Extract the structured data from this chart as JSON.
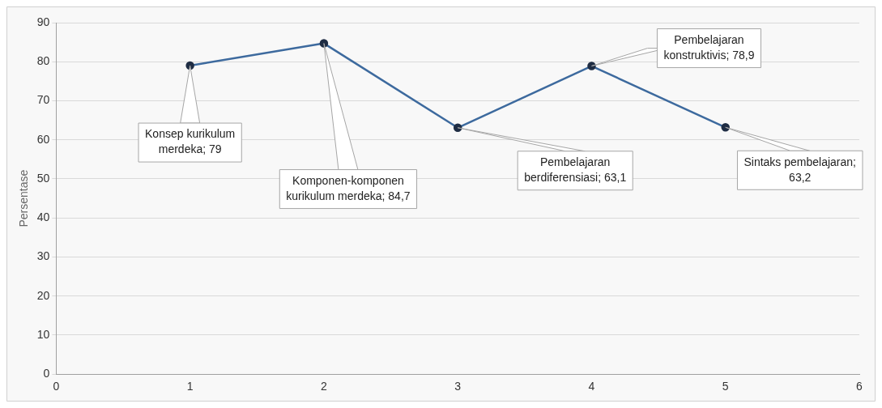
{
  "chart_data": {
    "type": "line",
    "ylabel": "Persentase",
    "x": [
      1,
      2,
      3,
      4,
      5
    ],
    "series": [
      {
        "color": "#3d6a9e",
        "values": [
          79,
          84.7,
          63.1,
          78.9,
          63.2
        ]
      }
    ],
    "xlim": [
      0,
      6
    ],
    "xticks": [
      0,
      1,
      2,
      3,
      4,
      5,
      6
    ],
    "ylim": [
      0,
      90
    ],
    "yticks": [
      0,
      10,
      20,
      30,
      40,
      50,
      60,
      70,
      80,
      90
    ],
    "grid": "y",
    "marker": "circle",
    "line_style": "solid",
    "legend": false,
    "annotations": [
      {
        "text": "Konsep kurikulum merdeka; 79",
        "x": 1,
        "y": 79
      },
      {
        "text": "Komponen-komponen kurikulum merdeka; 84,7",
        "x": 2,
        "y": 84.7
      },
      {
        "text": "Pembelajaran berdiferensiasi; 63,1",
        "x": 3,
        "y": 63.1
      },
      {
        "text": "Pembelajaran konstruktivis; 78,9",
        "x": 4,
        "y": 78.9
      },
      {
        "text": "Sintaks pembelajaran; 63,2",
        "x": 5,
        "y": 63.2
      }
    ]
  }
}
